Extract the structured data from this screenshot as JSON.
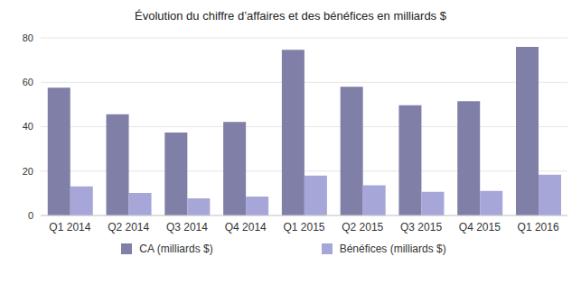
{
  "chart_data": {
    "type": "bar",
    "title": "Évolution du chiffre d’affaires et des bénéfices en milliards $",
    "categories": [
      "Q1 2014",
      "Q2 2014",
      "Q3 2014",
      "Q4 2014",
      "Q1 2015",
      "Q2 2015",
      "Q3 2015",
      "Q4 2015",
      "Q1 2016"
    ],
    "series": [
      {
        "name": "CA (milliards $)",
        "color": "#7f7fa8",
        "values": [
          57.6,
          45.6,
          37.4,
          42.1,
          74.6,
          58.0,
          49.6,
          51.5,
          75.9
        ]
      },
      {
        "name": "Bénéfices (milliards $)",
        "color": "#a6a6d8",
        "values": [
          13.1,
          10.2,
          7.7,
          8.5,
          18.0,
          13.6,
          10.7,
          11.1,
          18.4
        ]
      }
    ],
    "ylim": [
      0,
      80
    ],
    "yticks": [
      0,
      20,
      40,
      60,
      80
    ],
    "grid": true,
    "legend": "bottom"
  }
}
